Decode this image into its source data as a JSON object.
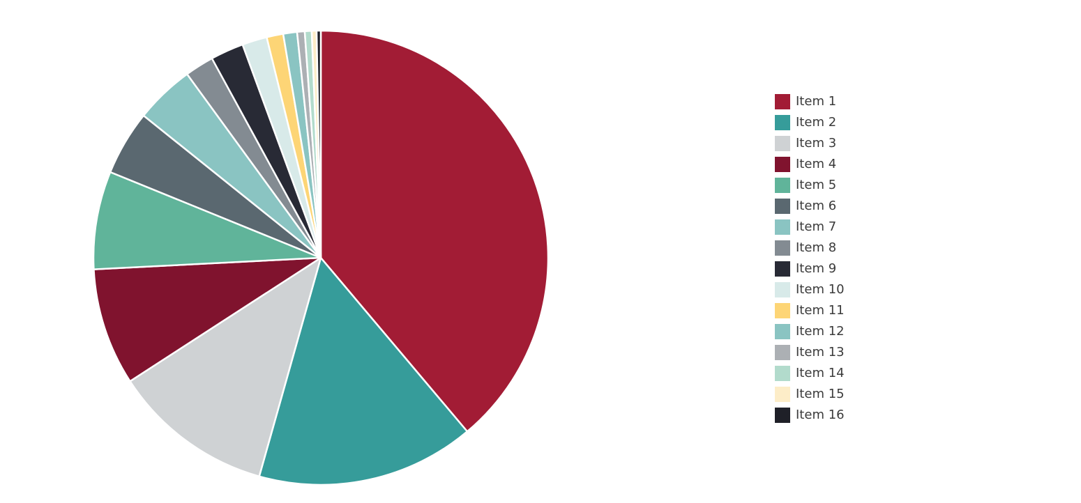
{
  "chart_data": {
    "type": "pie",
    "title": "",
    "start_angle_deg": 0,
    "direction": "clockwise",
    "legend_position": "right",
    "slices": [
      {
        "label": "Item 1",
        "value": 39.6,
        "color": "#A21C35"
      },
      {
        "label": "Item 2",
        "value": 15.8,
        "color": "#369C9A"
      },
      {
        "label": "Item 3",
        "value": 11.7,
        "color": "#CFD2D4"
      },
      {
        "label": "Item 4",
        "value": 8.5,
        "color": "#80132E"
      },
      {
        "label": "Item 5",
        "value": 7.1,
        "color": "#60B49A"
      },
      {
        "label": "Item 6",
        "value": 4.7,
        "color": "#5A6870"
      },
      {
        "label": "Item 7",
        "value": 4.3,
        "color": "#8AC4C2"
      },
      {
        "label": "Item 8",
        "value": 2.1,
        "color": "#838B92"
      },
      {
        "label": "Item 9",
        "value": 2.4,
        "color": "#282A35"
      },
      {
        "label": "Item 10",
        "value": 1.8,
        "color": "#D8EAE9"
      },
      {
        "label": "Item 11",
        "value": 1.2,
        "color": "#FDD576"
      },
      {
        "label": "Item 12",
        "value": 1.0,
        "color": "#8AC4C2"
      },
      {
        "label": "Item 13",
        "value": 0.55,
        "color": "#ACB0B4"
      },
      {
        "label": "Item 14",
        "value": 0.5,
        "color": "#B2DBCC"
      },
      {
        "label": "Item 15",
        "value": 0.35,
        "color": "#FDEDC8"
      },
      {
        "label": "Item 16",
        "value": 0.3,
        "color": "#1F2028"
      }
    ]
  }
}
